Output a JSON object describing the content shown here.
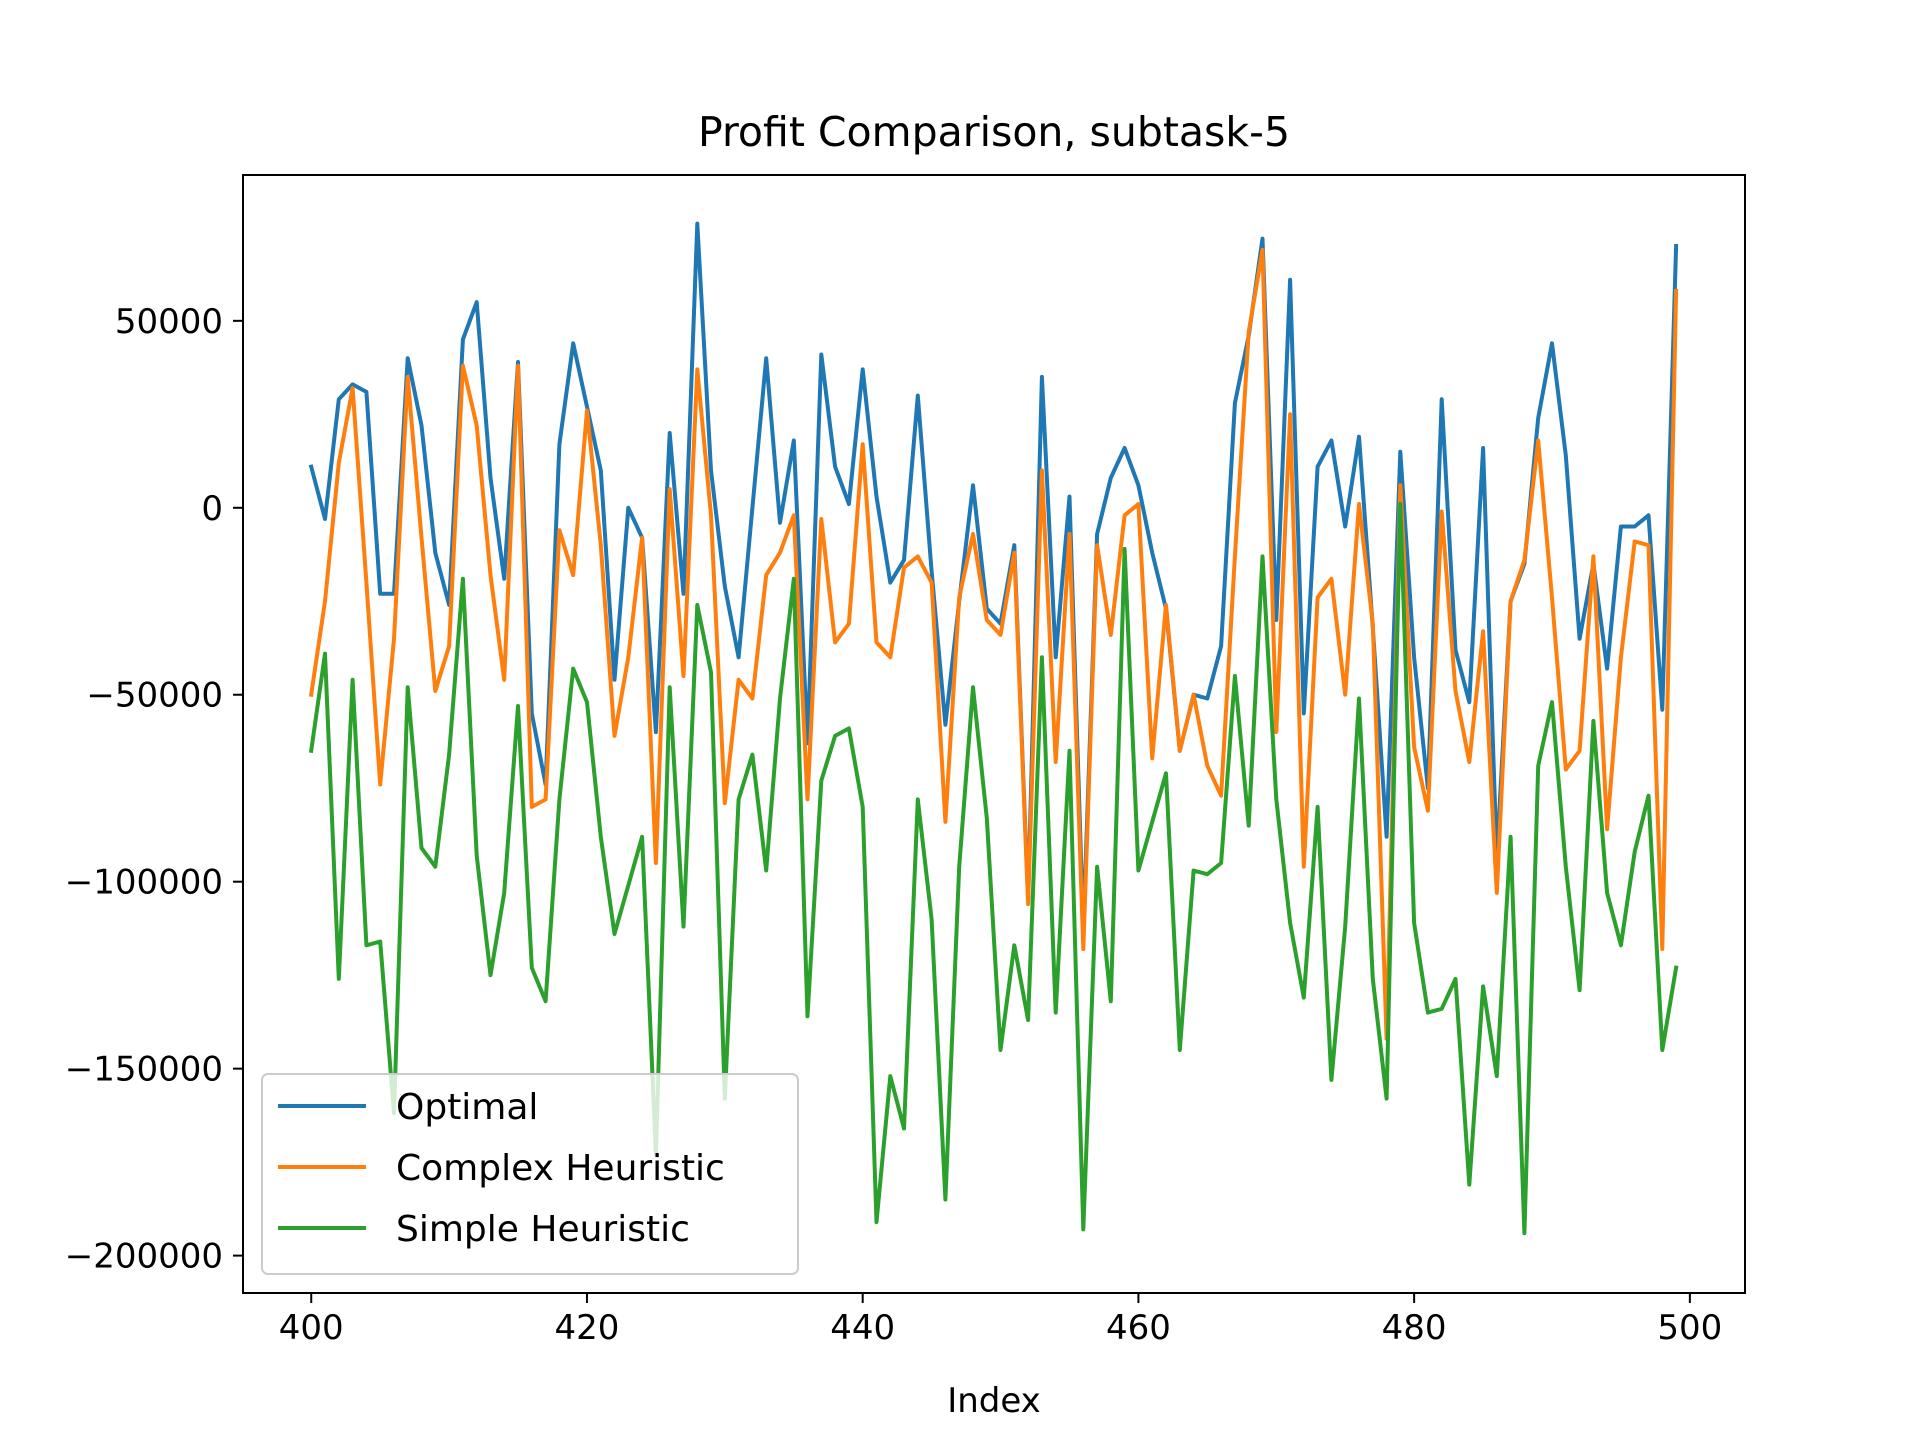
{
  "chart_data": {
    "type": "line",
    "title": "Profit Comparison, subtask-5",
    "xlabel": "Index",
    "ylabel": "",
    "xlim": [
      395.05,
      504.0
    ],
    "ylim": [
      -210000,
      89000
    ],
    "xticks": [
      400,
      420,
      440,
      460,
      480,
      500
    ],
    "yticks": [
      -200000,
      -150000,
      -100000,
      -50000,
      0,
      50000
    ],
    "ytick_labels": [
      "−200000",
      "−150000",
      "−100000",
      "−50000",
      "0",
      "50000"
    ],
    "grid": false,
    "legend_position": "lower-left",
    "x_start": 400,
    "series": [
      {
        "name": "Optimal",
        "color": "#1f77b4",
        "values": [
          11000,
          -3000,
          29000,
          33000,
          31000,
          -23000,
          -23000,
          40000,
          22000,
          -12000,
          -26000,
          45000,
          55000,
          8000,
          -19000,
          39000,
          -55000,
          -74000,
          17000,
          44000,
          27000,
          10000,
          -46000,
          0,
          -8000,
          -60000,
          20000,
          -23000,
          76000,
          10000,
          -21000,
          -40000,
          0,
          40000,
          -4000,
          18000,
          -63000,
          41000,
          11000,
          1000,
          37000,
          3000,
          -20000,
          -14000,
          30000,
          -17000,
          -58000,
          -25000,
          6000,
          -27000,
          -31000,
          -10000,
          -105000,
          35000,
          -40000,
          3000,
          -113000,
          -7000,
          8000,
          16000,
          6000,
          -12000,
          -27000,
          -65000,
          -50000,
          -51000,
          -37000,
          28000,
          46000,
          72000,
          -30000,
          61000,
          -55000,
          11000,
          18000,
          -5000,
          19000,
          -32000,
          -88000,
          15000,
          -40000,
          -75000,
          29000,
          -38000,
          -52000,
          16000,
          -94000,
          -25000,
          -15000,
          24000,
          44000,
          14000,
          -35000,
          -15000,
          -43000,
          -5000,
          -5000,
          -2000,
          -54000,
          70000
        ]
      },
      {
        "name": "Complex Heuristic",
        "color": "#ff7f0e",
        "values": [
          -50000,
          -25000,
          12000,
          32000,
          -20000,
          -74000,
          -35000,
          35000,
          -8000,
          -49000,
          -37000,
          38000,
          22000,
          -18000,
          -46000,
          38000,
          -80000,
          -78000,
          -6000,
          -18000,
          26000,
          -10000,
          -61000,
          -40000,
          -8000,
          -95000,
          5000,
          -45000,
          37000,
          -2000,
          -79000,
          -46000,
          -51000,
          -18000,
          -12000,
          -2000,
          -78000,
          -3000,
          -36000,
          -31000,
          17000,
          -36000,
          -40000,
          -16000,
          -13000,
          -20000,
          -84000,
          -24000,
          -7000,
          -30000,
          -34000,
          -12000,
          -106000,
          10000,
          -68000,
          -7000,
          -118000,
          -10000,
          -34000,
          -2000,
          1000,
          -67000,
          -26000,
          -65000,
          -50000,
          -69000,
          -77000,
          -13000,
          47000,
          69000,
          -60000,
          25000,
          -96000,
          -24000,
          -19000,
          -50000,
          1000,
          -31000,
          -142000,
          6000,
          -64000,
          -81000,
          -1000,
          -49000,
          -68000,
          -33000,
          -103000,
          -25000,
          -14000,
          18000,
          -24000,
          -70000,
          -65000,
          -13000,
          -86000,
          -40000,
          -9000,
          -10000,
          -118000,
          58000
        ]
      },
      {
        "name": "Simple Heuristic",
        "color": "#2ca02c",
        "values": [
          -65000,
          -39000,
          -126000,
          -46000,
          -117000,
          -116000,
          -162000,
          -48000,
          -91000,
          -96000,
          -66000,
          -19000,
          -93000,
          -125000,
          -103000,
          -53000,
          -123000,
          -132000,
          -78000,
          -43000,
          -52000,
          -88000,
          -114000,
          -101000,
          -88000,
          -173000,
          -48000,
          -112000,
          -26000,
          -44000,
          -158000,
          -78000,
          -66000,
          -97000,
          -51000,
          -19000,
          -136000,
          -73000,
          -61000,
          -59000,
          -80000,
          -191000,
          -152000,
          -166000,
          -78000,
          -110000,
          -185000,
          -96000,
          -48000,
          -83000,
          -145000,
          -117000,
          -137000,
          -40000,
          -135000,
          -65000,
          -193000,
          -96000,
          -132000,
          -11000,
          -97000,
          -84000,
          -71000,
          -145000,
          -97000,
          -98000,
          -95000,
          -45000,
          -85000,
          -13000,
          -78000,
          -111000,
          -131000,
          -80000,
          -153000,
          -112000,
          -51000,
          -126000,
          -158000,
          1000,
          -111000,
          -135000,
          -134000,
          -126000,
          -181000,
          -128000,
          -152000,
          -88000,
          -194000,
          -69000,
          -52000,
          -96000,
          -129000,
          -57000,
          -103000,
          -117000,
          -92000,
          -77000,
          -145000,
          -123000
        ]
      }
    ]
  }
}
